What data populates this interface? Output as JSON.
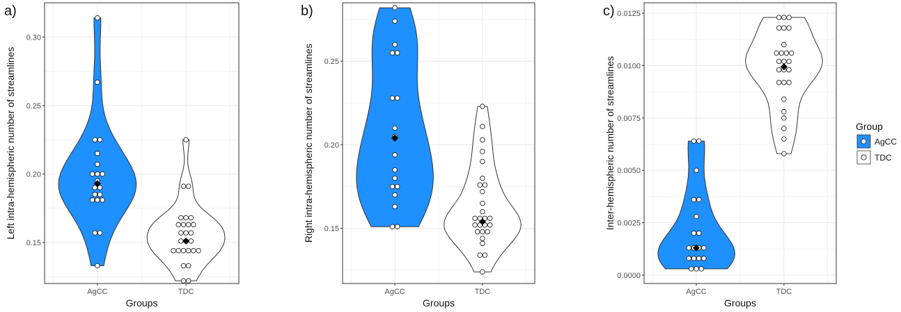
{
  "colors": {
    "agcc": "#1e90ff",
    "tdc": "#ffffff",
    "grid": "#ebebeb",
    "panel_border": "#333333",
    "mean_marker": "#000000"
  },
  "legend": {
    "title": "Group",
    "items": [
      {
        "label": "AgCC",
        "color": "#1e90ff"
      },
      {
        "label": "TDC",
        "color": "#ffffff"
      }
    ]
  },
  "chart_data": [
    {
      "tag": "a)",
      "type": "violin",
      "xlabel": "Groups",
      "ylabel": "Left intra-hemispheric number of streamlines",
      "categories": [
        "AgCC",
        "TDC"
      ],
      "ylim": [
        0.12,
        0.325
      ],
      "yticks": [
        "0.15",
        "0.20",
        "0.25",
        "0.30"
      ],
      "series": [
        {
          "name": "AgCC",
          "mean": 0.193,
          "points": [
            0.314,
            0.267,
            0.225,
            0.225,
            0.215,
            0.207,
            0.2,
            0.2,
            0.2,
            0.195,
            0.19,
            0.19,
            0.185,
            0.185,
            0.181,
            0.181,
            0.181,
            0.157,
            0.157,
            0.133
          ]
        },
        {
          "name": "TDC",
          "mean": 0.151,
          "points": [
            0.225,
            0.191,
            0.191,
            0.168,
            0.168,
            0.168,
            0.163,
            0.163,
            0.163,
            0.163,
            0.157,
            0.157,
            0.157,
            0.151,
            0.151,
            0.151,
            0.144,
            0.144,
            0.144,
            0.144,
            0.144,
            0.144,
            0.133,
            0.133,
            0.122,
            0.122
          ]
        }
      ]
    },
    {
      "tag": "b)",
      "type": "violin",
      "xlabel": "Groups",
      "ylabel": "Right intra-hemispheric number of streamlines",
      "categories": [
        "AgCC",
        "TDC"
      ],
      "ylim": [
        0.117,
        0.285
      ],
      "yticks": [
        "0.15",
        "0.20",
        "0.25"
      ],
      "series": [
        {
          "name": "AgCC",
          "mean": 0.204,
          "points": [
            0.282,
            0.274,
            0.26,
            0.255,
            0.255,
            0.228,
            0.228,
            0.21,
            0.205,
            0.204,
            0.194,
            0.185,
            0.18,
            0.175,
            0.175,
            0.17,
            0.163,
            0.151,
            0.151
          ]
        },
        {
          "name": "TDC",
          "mean": 0.154,
          "points": [
            0.223,
            0.211,
            0.203,
            0.196,
            0.19,
            0.18,
            0.176,
            0.176,
            0.172,
            0.165,
            0.16,
            0.156,
            0.156,
            0.156,
            0.156,
            0.152,
            0.152,
            0.152,
            0.152,
            0.148,
            0.148,
            0.148,
            0.144,
            0.141,
            0.134,
            0.134,
            0.124
          ]
        }
      ]
    },
    {
      "tag": "c)",
      "type": "violin",
      "xlabel": "Groups",
      "ylabel": "Inter-hemispheric number of streamlines",
      "categories": [
        "AgCC",
        "TDC"
      ],
      "ylim": [
        -0.0004,
        0.013
      ],
      "yticks": [
        "0.0000",
        "0.0025",
        "0.0050",
        "0.0075",
        "0.0100",
        "0.0125"
      ],
      "series": [
        {
          "name": "AgCC",
          "mean": 0.0013,
          "points": [
            0.0064,
            0.0064,
            0.005,
            0.0036,
            0.0036,
            0.0028,
            0.002,
            0.002,
            0.0013,
            0.0013,
            0.0013,
            0.0013,
            0.0008,
            0.0008,
            0.0008,
            0.0008,
            0.0003,
            0.0003,
            0.0003
          ]
        },
        {
          "name": "TDC",
          "mean": 0.00995,
          "points": [
            0.0123,
            0.0123,
            0.0123,
            0.0118,
            0.0118,
            0.0118,
            0.011,
            0.0106,
            0.0106,
            0.0106,
            0.0106,
            0.0102,
            0.0102,
            0.0102,
            0.0098,
            0.0098,
            0.0098,
            0.0092,
            0.0092,
            0.0092,
            0.0084,
            0.0078,
            0.0075,
            0.007,
            0.0065,
            0.0058
          ]
        }
      ]
    }
  ]
}
